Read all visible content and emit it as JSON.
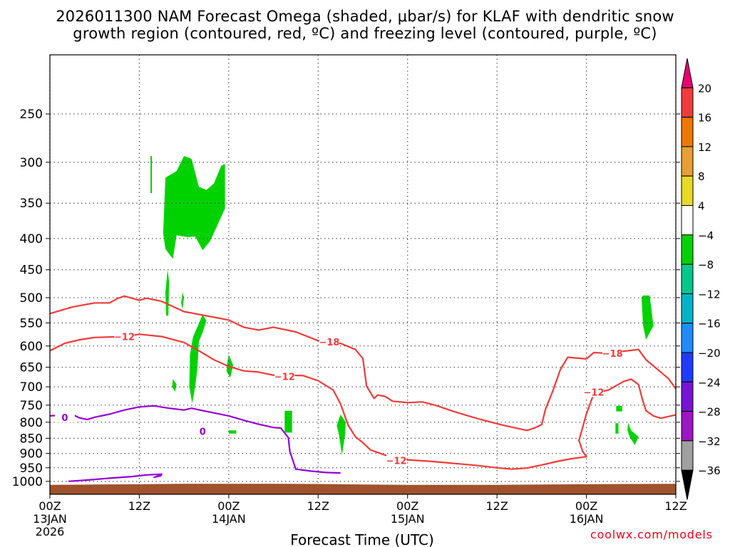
{
  "header": {
    "title_line1": "2026011300 NAM Forecast Omega (shaded, μbar/s) for KLAF with dendritic snow",
    "title_line2": "growth region (contoured, red, ºC) and freezing level (contoured, purple, ºC)"
  },
  "footer": {
    "attribution": "coolwx.com/models"
  },
  "colors": {
    "terrain": "#a0522d",
    "snow_growth_contour": "#ee3b3b",
    "freezing_level_contour": "#9400d3",
    "grid": "#555555"
  },
  "chart_data": {
    "type": "time-pressure cross section",
    "station": "KLAF",
    "xlabel": "Forecast Time (UTC)",
    "ylabel": "",
    "xlim_hours": [
      0,
      84
    ],
    "ylim_hpa": [
      1050,
      200
    ],
    "y_scale": "log-pressure",
    "grid": true,
    "y_ticks": [
      250,
      300,
      350,
      400,
      450,
      500,
      550,
      600,
      650,
      700,
      750,
      800,
      850,
      900,
      950,
      1000
    ],
    "x_ticks": [
      {
        "hour": 0,
        "lines": [
          "00Z",
          "13JAN",
          "2026"
        ]
      },
      {
        "hour": 12,
        "lines": [
          "12Z"
        ]
      },
      {
        "hour": 24,
        "lines": [
          "00Z",
          "14JAN"
        ]
      },
      {
        "hour": 36,
        "lines": [
          "12Z"
        ]
      },
      {
        "hour": 48,
        "lines": [
          "00Z",
          "15JAN"
        ]
      },
      {
        "hour": 60,
        "lines": [
          "12Z"
        ]
      },
      {
        "hour": 72,
        "lines": [
          "00Z",
          "16JAN"
        ]
      },
      {
        "hour": 84,
        "lines": [
          "12Z"
        ]
      }
    ],
    "colorbar": {
      "units": "μbar/s",
      "levels": [
        {
          "label": "",
          "color": "#e8006e"
        },
        {
          "label": "20",
          "color": "#f03c3c"
        },
        {
          "label": "16",
          "color": "#f07800"
        },
        {
          "label": "12",
          "color": "#e8a030"
        },
        {
          "label": "8",
          "color": "#e8d828"
        },
        {
          "label": "4",
          "color": "#ffffff"
        },
        {
          "label": "−4",
          "color": "#00d200"
        },
        {
          "label": "−8",
          "color": "#00c88a"
        },
        {
          "label": "−12",
          "color": "#00b4c8"
        },
        {
          "label": "−16",
          "color": "#1e8cff"
        },
        {
          "label": "−20",
          "color": "#1e3cff"
        },
        {
          "label": "−24",
          "color": "#7814d2"
        },
        {
          "label": "−28",
          "color": "#a014c8"
        },
        {
          "label": "−32",
          "color": "#a0a0a0"
        },
        {
          "label": "−36",
          "color": "#000000"
        }
      ]
    },
    "surface_pressure_hpa": [
      [
        0,
        1013
      ],
      [
        6,
        1012
      ],
      [
        12,
        1011
      ],
      [
        18,
        1009
      ],
      [
        24,
        1009
      ],
      [
        30,
        1009
      ],
      [
        36,
        1010
      ],
      [
        42,
        1012
      ],
      [
        48,
        1013
      ],
      [
        54,
        1013
      ],
      [
        60,
        1013
      ],
      [
        66,
        1012
      ],
      [
        72,
        1011
      ],
      [
        78,
        1010
      ],
      [
        84,
        1009
      ]
    ],
    "contours": [
      {
        "name": "dgz_-18",
        "color": "snow",
        "label": "−18",
        "labels_at_hour": [
          [
            37.5,
            591
          ],
          [
            75.5,
            617
          ]
        ],
        "points": [
          [
            0,
            531
          ],
          [
            3,
            518
          ],
          [
            6,
            510
          ],
          [
            8,
            510
          ],
          [
            9,
            502
          ],
          [
            10,
            497
          ],
          [
            12,
            505
          ],
          [
            13,
            501
          ],
          [
            15,
            507
          ],
          [
            18,
            527
          ],
          [
            24,
            544
          ],
          [
            26,
            559
          ],
          [
            28,
            565
          ],
          [
            30,
            559
          ],
          [
            33,
            569
          ],
          [
            36,
            588
          ],
          [
            39,
            594
          ],
          [
            41,
            608
          ],
          [
            42,
            629
          ],
          [
            42.5,
            698
          ],
          [
            43.5,
            731
          ],
          [
            44,
            722
          ],
          [
            45,
            726
          ],
          [
            46,
            739
          ],
          [
            48,
            743
          ],
          [
            50,
            741
          ],
          [
            52,
            752
          ],
          [
            54,
            767
          ],
          [
            56,
            780
          ],
          [
            58,
            793
          ],
          [
            61,
            810
          ],
          [
            64,
            825
          ],
          [
            65,
            818
          ],
          [
            66,
            807
          ],
          [
            66.5,
            762
          ],
          [
            67.5,
            711
          ],
          [
            68.5,
            656
          ],
          [
            69.5,
            626
          ],
          [
            72,
            630
          ],
          [
            73,
            615
          ],
          [
            75,
            617
          ],
          [
            77,
            612
          ],
          [
            79,
            608
          ],
          [
            80,
            632
          ],
          [
            83,
            678
          ],
          [
            84,
            705
          ]
        ]
      },
      {
        "name": "dgz_-12",
        "color": "snow",
        "label": "−12",
        "labels_at_hour": [
          [
            10,
            579
          ],
          [
            31.5,
            673
          ],
          [
            46.5,
            924
          ],
          [
            73,
            714
          ]
        ],
        "points": [
          [
            0,
            611
          ],
          [
            2,
            594
          ],
          [
            4,
            586
          ],
          [
            6,
            581
          ],
          [
            10,
            579
          ],
          [
            12,
            574
          ],
          [
            15,
            579
          ],
          [
            18,
            592
          ],
          [
            20,
            611
          ],
          [
            22,
            632
          ],
          [
            24,
            648
          ],
          [
            26,
            659
          ],
          [
            28,
            662
          ],
          [
            30,
            670
          ],
          [
            32,
            670
          ],
          [
            34,
            671
          ],
          [
            36,
            684
          ],
          [
            38,
            708
          ],
          [
            39,
            746
          ],
          [
            40,
            808
          ],
          [
            41,
            845
          ],
          [
            42,
            864
          ],
          [
            43,
            888
          ],
          [
            45,
            906
          ],
          [
            48,
            922
          ],
          [
            51,
            927
          ],
          [
            54,
            934
          ],
          [
            57,
            941
          ],
          [
            60,
            950
          ],
          [
            62,
            955
          ],
          [
            64,
            951
          ],
          [
            66,
            940
          ],
          [
            68,
            928
          ],
          [
            70,
            918
          ],
          [
            72,
            911
          ],
          [
            71.5,
            893
          ],
          [
            71,
            857
          ],
          [
            71.5,
            816
          ],
          [
            72,
            775
          ],
          [
            73,
            718
          ],
          [
            75,
            708
          ],
          [
            77,
            686
          ],
          [
            78,
            680
          ],
          [
            79,
            694
          ],
          [
            79.5,
            733
          ],
          [
            80,
            766
          ],
          [
            81,
            781
          ],
          [
            82,
            788
          ],
          [
            84,
            778
          ]
        ]
      },
      {
        "name": "freezing_0",
        "color": "fz",
        "label": "0",
        "labels_at_hour": [
          [
            2,
            785
          ],
          [
            20.5,
            828
          ]
        ],
        "points": [
          [
            0,
            781
          ],
          [
            2,
            778
          ],
          [
            3,
            777
          ],
          [
            4,
            787
          ],
          [
            5,
            792
          ],
          [
            6,
            785
          ],
          [
            8,
            776
          ],
          [
            10,
            764
          ],
          [
            12,
            755
          ],
          [
            14,
            752
          ],
          [
            16,
            759
          ],
          [
            18,
            764
          ],
          [
            19,
            759
          ],
          [
            21,
            768
          ],
          [
            24,
            781
          ],
          [
            26,
            794
          ],
          [
            28,
            806
          ],
          [
            30,
            816
          ],
          [
            31,
            818
          ],
          [
            32,
            848
          ],
          [
            32.2,
            893
          ],
          [
            33,
            955
          ],
          [
            35,
            962
          ],
          [
            37,
            967
          ],
          [
            39,
            969
          ]
        ]
      },
      {
        "name": "freezing_0_low",
        "color": "fz",
        "label": "",
        "labels_at_hour": [],
        "points": [
          [
            2.5,
            1000
          ],
          [
            5,
            995
          ],
          [
            8,
            988
          ],
          [
            11,
            982
          ],
          [
            13,
            976
          ],
          [
            15,
            973
          ],
          [
            14,
            985
          ],
          [
            15,
            978
          ]
        ]
      }
    ],
    "shaded_regions": [
      {
        "name": "omega_m4_a",
        "bin": "−4",
        "points": [
          [
            15.5,
            318
          ],
          [
            17,
            310
          ],
          [
            18,
            293
          ],
          [
            19,
            296
          ],
          [
            20,
            329
          ],
          [
            21,
            333
          ],
          [
            22,
            325
          ],
          [
            23,
            304
          ],
          [
            23.5,
            302
          ],
          [
            23.5,
            319
          ],
          [
            23.5,
            357
          ],
          [
            22.5,
            380
          ],
          [
            21.5,
            404
          ],
          [
            20.5,
            418
          ],
          [
            19.5,
            397
          ],
          [
            18.5,
            398
          ],
          [
            17,
            395
          ],
          [
            16.5,
            432
          ],
          [
            15.5,
            416
          ],
          [
            15.2,
            393
          ]
        ]
      },
      {
        "name": "omega_m4_b",
        "bin": "−4",
        "points": [
          [
            13.5,
            293
          ],
          [
            13.7,
            293
          ],
          [
            13.7,
            337
          ],
          [
            13.5,
            337
          ]
        ]
      },
      {
        "name": "omega_m4_c",
        "bin": "−4",
        "points": [
          [
            15.8,
            450
          ],
          [
            16,
            470
          ],
          [
            15.9,
            535
          ],
          [
            15.6,
            535
          ],
          [
            15.5,
            490
          ]
        ]
      },
      {
        "name": "omega_m4_d",
        "bin": "−4",
        "points": [
          [
            17.8,
            490
          ],
          [
            18,
            500
          ],
          [
            17.8,
            522
          ],
          [
            17.6,
            510
          ]
        ]
      },
      {
        "name": "omega_m4_e",
        "bin": "−4",
        "points": [
          [
            20.5,
            533
          ],
          [
            21,
            545
          ],
          [
            20.5,
            570
          ],
          [
            20,
            590
          ],
          [
            19.8,
            650
          ],
          [
            19.5,
            700
          ],
          [
            19.1,
            745
          ],
          [
            18.7,
            700
          ],
          [
            18.8,
            620
          ],
          [
            19.2,
            580
          ]
        ]
      },
      {
        "name": "omega_m4_f",
        "bin": "−4",
        "points": [
          [
            24,
            620
          ],
          [
            24.6,
            645
          ],
          [
            24.2,
            676
          ],
          [
            23.7,
            660
          ],
          [
            23.8,
            640
          ]
        ]
      },
      {
        "name": "omega_m4_g",
        "bin": "−4",
        "points": [
          [
            16.5,
            680
          ],
          [
            17,
            693
          ],
          [
            16.8,
            713
          ],
          [
            16.4,
            700
          ]
        ]
      },
      {
        "name": "omega_m4_h",
        "bin": "−4",
        "points": [
          [
            24,
            825
          ],
          [
            25,
            825
          ],
          [
            25,
            835
          ],
          [
            24,
            835
          ]
        ]
      },
      {
        "name": "omega_m4_i",
        "bin": "−4",
        "points": [
          [
            31.5,
            766
          ],
          [
            32.5,
            766
          ],
          [
            32.5,
            832
          ],
          [
            31.5,
            832
          ]
        ]
      },
      {
        "name": "omega_m4_j",
        "bin": "−4",
        "points": [
          [
            39,
            777
          ],
          [
            39.7,
            800
          ],
          [
            39.6,
            842
          ],
          [
            39.2,
            905
          ],
          [
            38.8,
            840
          ],
          [
            38.5,
            810
          ]
        ]
      },
      {
        "name": "omega_m4_k",
        "bin": "−4",
        "points": [
          [
            79.6,
            496
          ],
          [
            80.5,
            496
          ],
          [
            81,
            556
          ],
          [
            80,
            586
          ],
          [
            79.6,
            555
          ],
          [
            79.4,
            500
          ]
        ]
      },
      {
        "name": "omega_m4_l",
        "bin": "−4",
        "points": [
          [
            76,
            752
          ],
          [
            76.8,
            752
          ],
          [
            76.8,
            768
          ],
          [
            76,
            768
          ]
        ]
      },
      {
        "name": "omega_m4_m",
        "bin": "−4",
        "points": [
          [
            75.9,
            803
          ],
          [
            76.3,
            803
          ],
          [
            76.3,
            835
          ],
          [
            75.9,
            835
          ]
        ]
      },
      {
        "name": "omega_m4_n",
        "bin": "−4",
        "points": [
          [
            77.6,
            802
          ],
          [
            78,
            825
          ],
          [
            79,
            845
          ],
          [
            78.5,
            872
          ],
          [
            77.8,
            845
          ],
          [
            77.5,
            825
          ]
        ]
      },
      {
        "name": "omega_p4_a",
        "bin": "4",
        "points": [
          [
            42.5,
            382
          ],
          [
            43.5,
            392
          ],
          [
            45,
            436
          ],
          [
            45,
            513
          ],
          [
            46,
            513
          ],
          [
            46,
            665
          ],
          [
            45,
            665
          ],
          [
            45,
            696
          ],
          [
            44.5,
            696
          ],
          [
            44.5,
            600
          ],
          [
            44,
            570
          ],
          [
            43,
            535
          ],
          [
            42.7,
            490
          ]
        ]
      },
      {
        "name": "omega_p4_b",
        "bin": "4",
        "points": [
          [
            49,
            485
          ],
          [
            50,
            483
          ],
          [
            50.5,
            512
          ],
          [
            49.8,
            538
          ],
          [
            49,
            520
          ]
        ]
      }
    ]
  }
}
